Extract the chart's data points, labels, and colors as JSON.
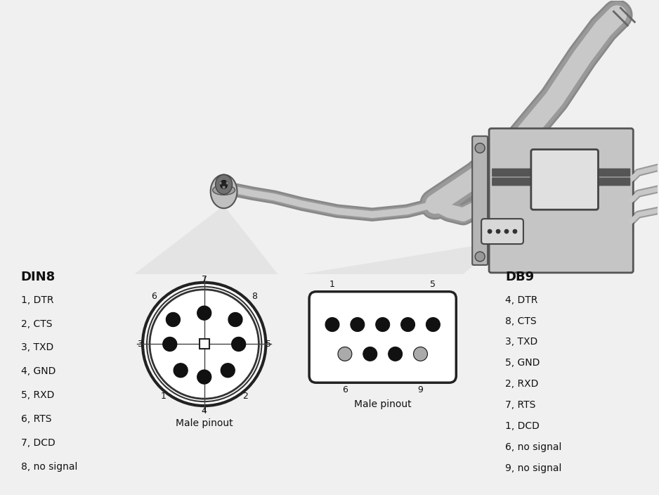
{
  "bg_color": "#f0f0f0",
  "din8_label": "DIN8",
  "db9_label": "DB9",
  "din8_pins": [
    "1, DTR",
    "2, CTS",
    "3, TXD",
    "4, GND",
    "5, RXD",
    "6, RTS",
    "7, DCD",
    "8, no signal"
  ],
  "db9_pins": [
    "4, DTR",
    "8, CTS",
    "3, TXD",
    "5, GND",
    "2, RXD",
    "7, RTS",
    "1, DCD",
    "6, no signal",
    "9, no signal"
  ],
  "male_pinout": "Male pinout",
  "pin_color_dark": "#111111",
  "pin_color_gray": "#aaaaaa",
  "text_color": "#111111",
  "cable_color": "#c8c8c8",
  "cable_dark": "#999999",
  "cable_edge": "#555555"
}
